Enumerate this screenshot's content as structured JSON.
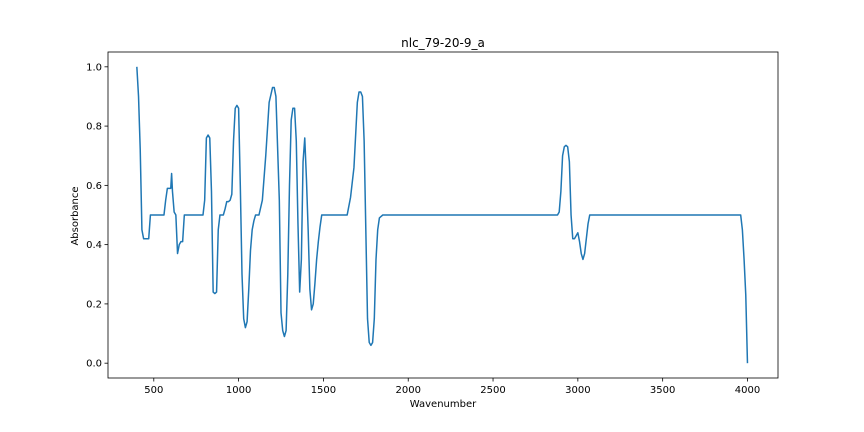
{
  "chart_data": {
    "type": "line",
    "title": "nlc_79-20-9_a",
    "xlabel": "Wavenumber",
    "ylabel": "Absorbance",
    "xlim": [
      230,
      4180
    ],
    "ylim": [
      -0.05,
      1.05
    ],
    "xticks": [
      500,
      1000,
      1500,
      2000,
      2500,
      3000,
      3500,
      4000
    ],
    "yticks": [
      0.0,
      0.2,
      0.4,
      0.6,
      0.8,
      1.0
    ],
    "grid": false,
    "series": [
      {
        "color": "#1f77b4",
        "x": [
          400,
          410,
          420,
          430,
          440,
          450,
          460,
          470,
          480,
          500,
          520,
          540,
          560,
          570,
          580,
          590,
          600,
          605,
          610,
          620,
          630,
          640,
          650,
          660,
          670,
          680,
          700,
          750,
          790,
          800,
          810,
          820,
          830,
          840,
          850,
          860,
          870,
          880,
          890,
          900,
          910,
          920,
          930,
          940,
          950,
          960,
          970,
          980,
          990,
          1000,
          1010,
          1020,
          1030,
          1040,
          1050,
          1060,
          1070,
          1080,
          1090,
          1100,
          1120,
          1140,
          1160,
          1180,
          1200,
          1210,
          1220,
          1240,
          1250,
          1260,
          1270,
          1280,
          1290,
          1300,
          1310,
          1320,
          1330,
          1340,
          1350,
          1360,
          1370,
          1380,
          1390,
          1400,
          1410,
          1420,
          1430,
          1440,
          1450,
          1460,
          1470,
          1480,
          1490,
          1500,
          1520,
          1540,
          1560,
          1580,
          1600,
          1620,
          1640,
          1660,
          1680,
          1700,
          1710,
          1720,
          1730,
          1740,
          1750,
          1760,
          1770,
          1780,
          1790,
          1800,
          1810,
          1820,
          1830,
          1850,
          1900,
          2000,
          2200,
          2400,
          2600,
          2800,
          2880,
          2890,
          2900,
          2910,
          2920,
          2930,
          2940,
          2950,
          2960,
          2970,
          2980,
          2990,
          3000,
          3010,
          3020,
          3030,
          3040,
          3050,
          3060,
          3070,
          3080,
          3200,
          3400,
          3600,
          3800,
          3950,
          3960,
          3970,
          3980,
          3990,
          4000
        ],
        "y": [
          1.0,
          0.9,
          0.72,
          0.45,
          0.42,
          0.42,
          0.42,
          0.42,
          0.5,
          0.5,
          0.5,
          0.5,
          0.5,
          0.55,
          0.59,
          0.59,
          0.59,
          0.64,
          0.58,
          0.51,
          0.5,
          0.37,
          0.4,
          0.41,
          0.41,
          0.5,
          0.5,
          0.5,
          0.5,
          0.55,
          0.76,
          0.77,
          0.76,
          0.58,
          0.24,
          0.235,
          0.24,
          0.45,
          0.5,
          0.5,
          0.5,
          0.52,
          0.545,
          0.545,
          0.55,
          0.57,
          0.75,
          0.86,
          0.87,
          0.86,
          0.6,
          0.3,
          0.15,
          0.12,
          0.14,
          0.25,
          0.38,
          0.45,
          0.48,
          0.5,
          0.5,
          0.55,
          0.7,
          0.88,
          0.93,
          0.93,
          0.9,
          0.55,
          0.17,
          0.11,
          0.09,
          0.11,
          0.3,
          0.6,
          0.82,
          0.86,
          0.86,
          0.75,
          0.47,
          0.24,
          0.35,
          0.68,
          0.76,
          0.62,
          0.45,
          0.25,
          0.18,
          0.2,
          0.27,
          0.35,
          0.41,
          0.46,
          0.5,
          0.5,
          0.5,
          0.5,
          0.5,
          0.5,
          0.5,
          0.5,
          0.5,
          0.56,
          0.66,
          0.88,
          0.915,
          0.915,
          0.9,
          0.75,
          0.45,
          0.15,
          0.07,
          0.06,
          0.07,
          0.15,
          0.35,
          0.45,
          0.49,
          0.5,
          0.5,
          0.5,
          0.5,
          0.5,
          0.5,
          0.5,
          0.5,
          0.51,
          0.58,
          0.7,
          0.73,
          0.735,
          0.73,
          0.68,
          0.5,
          0.42,
          0.42,
          0.43,
          0.44,
          0.41,
          0.37,
          0.35,
          0.37,
          0.42,
          0.47,
          0.5,
          0.5,
          0.5,
          0.5,
          0.5,
          0.5,
          0.5,
          0.5,
          0.45,
          0.35,
          0.23,
          0.0
        ]
      }
    ]
  }
}
